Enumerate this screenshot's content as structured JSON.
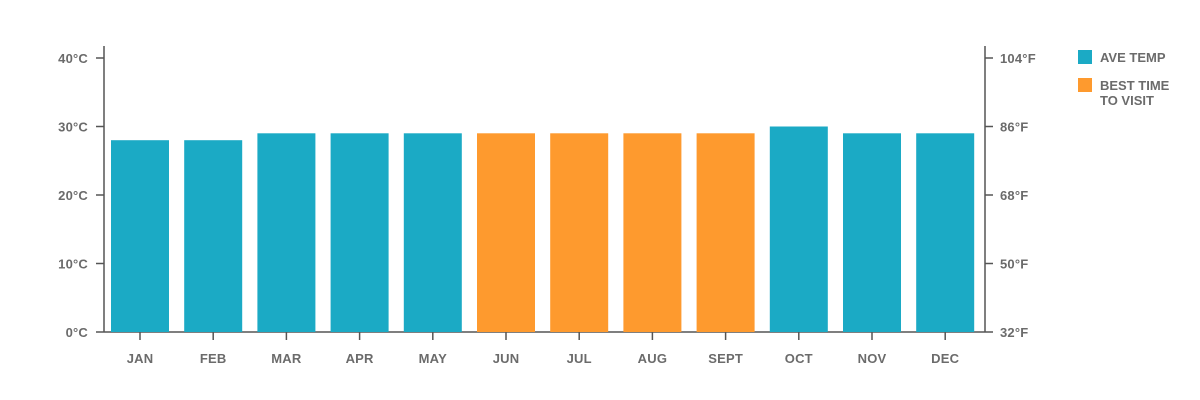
{
  "chart_data": {
    "type": "bar",
    "categories": [
      "JAN",
      "FEB",
      "MAR",
      "APR",
      "MAY",
      "JUN",
      "JUL",
      "AUG",
      "SEPT",
      "OCT",
      "NOV",
      "DEC"
    ],
    "values": [
      28,
      28,
      29,
      29,
      29,
      29,
      29,
      29,
      29,
      30,
      29,
      29
    ],
    "best_time": [
      false,
      false,
      false,
      false,
      false,
      true,
      true,
      true,
      true,
      false,
      false,
      false
    ],
    "unit": "°C",
    "ylim": [
      0,
      40
    ],
    "y_ticks_left": [
      {
        "value": 0,
        "label": "0°C"
      },
      {
        "value": 10,
        "label": "10°C"
      },
      {
        "value": 20,
        "label": "20°C"
      },
      {
        "value": 30,
        "label": "30°C"
      },
      {
        "value": 40,
        "label": "40°C"
      }
    ],
    "y_ticks_right": [
      {
        "value": 0,
        "label": "32°F"
      },
      {
        "value": 10,
        "label": "50°F"
      },
      {
        "value": 20,
        "label": "68°F"
      },
      {
        "value": 30,
        "label": "86°F"
      },
      {
        "value": 40,
        "label": "104°F"
      }
    ],
    "grid": false,
    "legend_position": "right",
    "legend": [
      {
        "label_lines": [
          "AVE TEMP"
        ],
        "color": "#1baac5"
      },
      {
        "label_lines": [
          "BEST TIME",
          "TO VISIT"
        ],
        "color": "#fe9a2e"
      }
    ],
    "colors": {
      "ave_temp": "#1baac5",
      "best_time": "#fe9a2e",
      "axis": "#555555",
      "text": "#6b6b6b"
    }
  }
}
